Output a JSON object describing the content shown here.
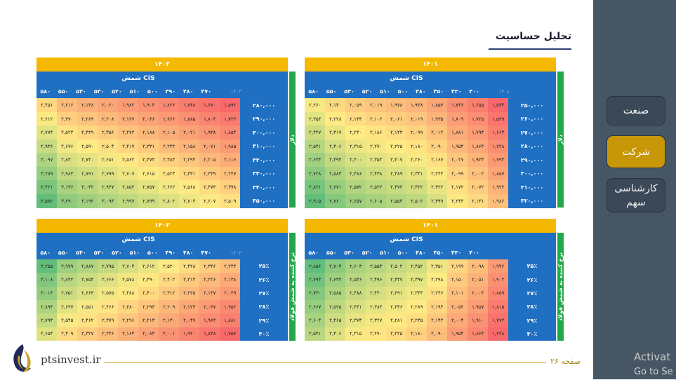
{
  "title": "تحلیل حساسیت",
  "sidebar": [
    {
      "label": "صنعت",
      "active": false
    },
    {
      "label": "شرکت",
      "active": true
    },
    {
      "label": "کارشناسی سهم",
      "active": false
    }
  ],
  "footer": {
    "site": "ptsinvest.ir",
    "page": "صفحه ۲۶"
  },
  "watermark": {
    "line1": "Activat",
    "line2": "Go to Se"
  },
  "panels": [
    {
      "id": "top-left",
      "banner": "۱۴۰۲",
      "header_title": "شمش CIS",
      "side_label": "دلار",
      "corner": "۱۴۰۳",
      "cols": [
        "۵۸۰",
        "۵۵۰",
        "۵۴۰",
        "۵۳۰",
        "۵۲۰",
        "۵۱۰",
        "۵۰۰",
        "۴۹۰",
        "۴۸۰",
        "۴۷۰"
      ],
      "rows": [
        {
          "label": "۲۸۰,۰۰۰",
          "cells": [
            "۲,۴۵۱",
            "۲,۲۱۶",
            "۲,۱۳۸",
            "۲,۰۶۰",
            "۱,۹۸۲",
            "۱,۹۰۴",
            "۱,۸۲۶",
            "۱,۷۴۸",
            "۱,۶۷۰",
            "۱,۵۹۲"
          ]
        },
        {
          "label": "۲۹۰,۰۰۰",
          "cells": [
            "۲,۶۱۲",
            "۲,۳۷۰",
            "۲,۲۸۹",
            "۲,۲۰۸",
            "۲,۱۲۷",
            "۲,۰۴۶",
            "۱,۹۶۶",
            "۱,۸۸۵",
            "۱,۸۰۴",
            "۱,۷۲۳"
          ]
        },
        {
          "label": "۳۰۰,۰۰۰",
          "cells": [
            "۲,۷۷۴",
            "۲,۵۲۳",
            "۲,۴۳۹",
            "۲,۳۵۶",
            "۲,۲۷۲",
            "۲,۱۸۸",
            "۲,۱۰۵",
            "۲,۰۲۱",
            "۱,۹۳۸",
            "۱,۸۵۴"
          ]
        },
        {
          "label": "۳۱۰,۰۰۰",
          "cells": [
            "۲,۹۳۶",
            "۲,۶۷۶",
            "۲,۵۹۰",
            "۲,۵۰۴",
            "۲,۴۱۷",
            "۲,۳۳۱",
            "۲,۲۴۴",
            "۲,۱۵۸",
            "۲,۰۷۱",
            "۱,۹۸۵"
          ]
        },
        {
          "label": "۳۲۰,۰۰۰",
          "cells": [
            "۳,۰۹۷",
            "۲,۸۳۰",
            "۲,۷۴۰",
            "۲,۶۵۱",
            "۲,۵۶۲",
            "۲,۴۷۳",
            "۲,۳۸۴",
            "۲,۲۹۴",
            "۲,۲۰۵",
            "۲,۱۱۶"
          ]
        },
        {
          "label": "۳۳۰,۰۰۰",
          "cells": [
            "۳,۲۵۹",
            "۲,۹۸۳",
            "۲,۸۹۱",
            "۲,۷۹۹",
            "۲,۷۰۷",
            "۲,۶۱۵",
            "۲,۵۲۳",
            "۲,۴۳۱",
            "۲,۳۳۹",
            "۲,۲۴۷"
          ]
        },
        {
          "label": "۳۴۰,۰۰۰",
          "cells": [
            "۳,۴۲۱",
            "۳,۱۳۶",
            "۳,۰۴۲",
            "۲,۹۴۷",
            "۲,۸۵۲",
            "۲,۷۵۷",
            "۲,۶۶۲",
            "۲,۵۶۸",
            "۲,۴۷۳",
            "۲,۳۷۸"
          ]
        },
        {
          "label": "۳۵۰,۰۰۰",
          "cells": [
            "۳,۵۸۲",
            "۳,۲۹۰",
            "۳,۱۹۲",
            "۳,۰۹۴",
            "۲,۹۹۷",
            "۲,۸۹۹",
            "۲,۸۰۲",
            "۲,۷۰۴",
            "۲,۶۰۷",
            "۲,۵۰۹"
          ]
        }
      ]
    },
    {
      "id": "top-right",
      "banner": "۱۴۰۱",
      "header_title": "شمش CIS",
      "side_label": "دلار",
      "corner": "۱۳۰۸",
      "cols": [
        "۵۸۰",
        "۵۵۰",
        "۵۳۰",
        "۵۲۰",
        "۵۱۰",
        "۵۰۰",
        "۴۸۰",
        "۴۵۰",
        "۴۳۰",
        "۴۰۰"
      ],
      "rows": [
        {
          "label": "۲۵۰,۰۰۰",
          "cells": [
            "۲,۲۶۰",
            "۲,۱۴۰",
            "۲,۰۵۹",
            "۲,۰۱۹",
            "۱,۹۷۸",
            "۱,۹۳۸",
            "۱,۸۵۷",
            "۱,۷۳۶",
            "۱,۶۵۵",
            "۱,۵۳۴"
          ]
        },
        {
          "label": "۲۶۰,۰۰۰",
          "cells": [
            "۲,۳۵۴",
            "۲,۲۲۸",
            "۲,۱۴۴",
            "۲,۱۰۲",
            "۲,۰۶۱",
            "۲,۰۱۹",
            "۱,۹۳۵",
            "۱,۸۰۹",
            "۱,۷۲۵",
            "۱,۵۹۹"
          ]
        },
        {
          "label": "۲۷۰,۰۰۰",
          "cells": [
            "۲,۴۴۷",
            "۲,۳۱۷",
            "۲,۲۳۰",
            "۲,۱۸۶",
            "۲,۱۴۳",
            "۲,۰۹۹",
            "۲,۰۱۲",
            "۱,۸۸۱",
            "۱,۷۹۴",
            "۱,۶۶۳"
          ]
        },
        {
          "label": "۲۸۰,۰۰۰",
          "cells": [
            "۲,۵۴۱",
            "۲,۴۰۶",
            "۲,۳۱۵",
            "۲,۲۷۰",
            "۲,۲۲۵",
            "۲,۱۸۰",
            "۲,۰۹۰",
            "۱,۹۵۴",
            "۱,۸۶۴",
            "۱,۷۲۸"
          ]
        },
        {
          "label": "۲۹۰,۰۰۰",
          "cells": [
            "۲,۶۳۴",
            "۲,۴۹۴",
            "۲,۴۰۰",
            "۲,۳۵۴",
            "۲,۳۰۷",
            "۲,۲۶۰",
            "۲,۱۶۷",
            "۲,۰۲۷",
            "۱,۹۳۳",
            "۱,۷۹۳"
          ]
        },
        {
          "label": "۳۰۰,۰۰۰",
          "cells": [
            "۲,۷۲۸",
            "۲,۵۸۳",
            "۲,۴۸۶",
            "۲,۴۳۸",
            "۲,۳۸۹",
            "۲,۳۴۱",
            "۲,۲۴۴",
            "۲,۰۹۹",
            "۲,۰۰۲",
            "۱,۸۵۷"
          ]
        },
        {
          "label": "۳۱۰,۰۰۰",
          "cells": [
            "۲,۸۲۱",
            "۲,۶۷۱",
            "۲,۵۷۲",
            "۲,۵۲۲",
            "۲,۴۷۲",
            "۲,۴۲۲",
            "۲,۳۲۲",
            "۲,۱۷۲",
            "۲,۰۷۲",
            "۱,۹۲۲"
          ]
        },
        {
          "label": "۳۲۰,۰۰۰",
          "cells": [
            "۲,۹۱۵",
            "۲,۷۶۰",
            "۲,۶۵۷",
            "۲,۶۰۵",
            "۲,۵۵۴",
            "۲,۵۰۲",
            "۲,۳۹۹",
            "۲,۲۴۴",
            "۲,۱۴۱",
            "۱,۹۸۶"
          ]
        }
      ]
    },
    {
      "id": "bottom-left",
      "banner": "۱۴۰۲",
      "header_title": "شمش CIS",
      "side_label": "نرخ کننده به شمش فولاد",
      "corner": "۱۴۰۳",
      "cols": [
        "۵۸۰",
        "۵۵۰",
        "۵۴۰",
        "۵۳۰",
        "۵۲۰",
        "۵۱۰",
        "۵۰۰",
        "۴۹۰",
        "۴۸۰",
        "۴۷۰"
      ],
      "rows": [
        {
          "label": "۲۵٪",
          "cells": [
            "۳,۲۵۵",
            "۲,۹۷۹",
            "۲,۸۸۷",
            "۲,۷۹۵",
            "۲,۷۰۴",
            "۲,۶۱۲",
            "۲,۵۲۰",
            "۲,۴۲۸",
            "۲,۳۳۶",
            "۲,۲۴۴"
          ]
        },
        {
          "label": "۲۶٪",
          "cells": [
            "۳,۱۰۸",
            "۲,۸۴۲",
            "۲,۷۵۴",
            "۲,۶۶۶",
            "۲,۵۷۸",
            "۲,۴۹۰",
            "۲,۴۰۲",
            "۲,۳۱۴",
            "۲,۲۲۶",
            "۲,۱۳۸"
          ]
        },
        {
          "label": "۲۷٪",
          "cells": [
            "۳,۰۱۴",
            "۲,۷۵۱",
            "۲,۶۶۳",
            "۲,۵۷۵",
            "۲,۴۸۸",
            "۲,۴۰۰",
            "۲,۳۱۲",
            "۲,۲۲۵",
            "۲,۱۳۷",
            "۲,۰۴۹"
          ]
        },
        {
          "label": "۲۸٪",
          "cells": [
            "۲,۸۹۴",
            "۲,۶۳۷",
            "۲,۵۵۱",
            "۲,۴۶۶",
            "۲,۳۸۰",
            "۲,۲۹۴",
            "۲,۲۰۹",
            "۲,۱۲۳",
            "۲,۰۳۷",
            "۱,۹۵۲"
          ]
        },
        {
          "label": "۲۹٪",
          "cells": [
            "۲,۷۹۴",
            "۲,۵۴۵",
            "۲,۴۶۲",
            "۲,۳۷۹",
            "۲,۲۹۶",
            "۲,۲۱۳",
            "۲,۱۳۰",
            "۲,۰۴۷",
            "۱,۹۶۴",
            "۱,۸۸۱"
          ]
        },
        {
          "label": "۳۰٪",
          "cells": [
            "۲,۶۵۴",
            "۲,۴۰۹",
            "۲,۳۲۷",
            "۲,۲۴۶",
            "۲,۱۶۴",
            "۲,۰۸۳",
            "۲,۰۰۱",
            "۱,۹۲۰",
            "۱,۸۳۸",
            "۱,۷۵۷"
          ]
        }
      ]
    },
    {
      "id": "bottom-right",
      "banner": "۱۴۰۱",
      "header_title": "شمش CIS",
      "side_label": "نرخ کننده به شمش فولاد",
      "corner": "",
      "cols": [
        "۵۸۰",
        "۵۵۰",
        "۵۳۰",
        "۵۲۰",
        "۵۱۰",
        "۵۰۰",
        "۴۸۰",
        "۴۵۰",
        "۴۳۰",
        "۴۰۰"
      ],
      "rows": [
        {
          "label": "۲۵٪",
          "cells": [
            "۲,۸۵۶",
            "۲,۷۰۴",
            "۲,۶۰۳",
            "۲,۵۵۳",
            "۲,۵۰۲",
            "۲,۴۵۲",
            "۲,۳۵۱",
            "۲,۱۹۹",
            "۲,۰۹۸",
            "۱,۹۴۶"
          ]
        },
        {
          "label": "۲۶٪",
          "cells": [
            "۲,۷۹۳",
            "۲,۶۴۴",
            "۲,۵۴۶",
            "۲,۴۹۶",
            "۲,۴۴۷",
            "۲,۳۹۷",
            "۲,۲۹۸",
            "۲,۱۵۰",
            "۲,۰۵۱",
            "۱,۹۰۲"
          ]
        },
        {
          "label": "۲۷٪",
          "cells": [
            "۲,۷۳۰",
            "۲,۵۸۵",
            "۲,۴۸۸",
            "۲,۴۴۰",
            "۲,۳۹۱",
            "۲,۳۴۳",
            "۲,۲۴۶",
            "۲,۱۰۱",
            "۲,۰۰۴",
            "۱,۸۵۹"
          ]
        },
        {
          "label": "۲۸٪",
          "cells": [
            "۲,۶۶۷",
            "۲,۵۲۵",
            "۲,۴۳۱",
            "۲,۳۸۴",
            "۲,۳۳۶",
            "۲,۲۸۹",
            "۲,۱۹۴",
            "۲,۰۵۲",
            "۱,۹۵۷",
            "۱,۸۱۵"
          ]
        },
        {
          "label": "۲۹٪",
          "cells": [
            "۲,۶۰۴",
            "۲,۴۶۵",
            "۲,۳۷۳",
            "۲,۳۲۷",
            "۲,۲۸۱",
            "۲,۲۳۵",
            "۲,۱۴۲",
            "۲,۰۰۴",
            "۱,۹۱۰",
            "۱,۷۷۲"
          ]
        },
        {
          "label": "۳۰٪",
          "cells": [
            "۲,۵۴۱",
            "۲,۴۰۶",
            "۲,۳۱۵",
            "۲,۲۷۰",
            "۲,۲۲۵",
            "۲,۱۸۰",
            "۲,۰۹۰",
            "۱,۹۵۴",
            "۱,۸۶۴",
            "۱,۷۲۸"
          ]
        }
      ]
    }
  ]
}
